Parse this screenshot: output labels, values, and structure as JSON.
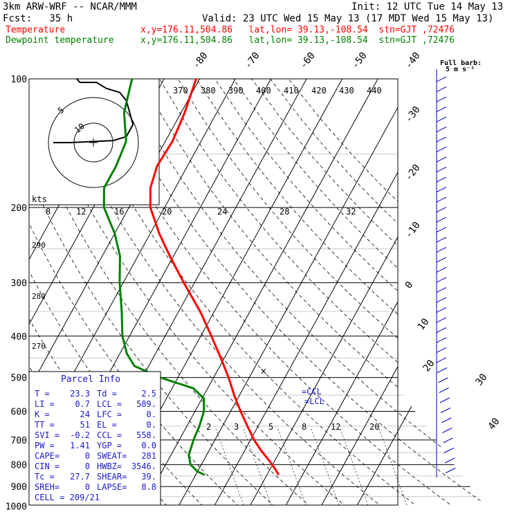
{
  "header": {
    "model": "3km ARW-WRF -- NCAR/MMM",
    "init": "Init: 12 UTC Tue 14 May 13",
    "fcst": "Fcst:   35 h",
    "valid": "Valid: 23 UTC Wed 15 May 13 (17 MDT Wed 15 May 13)",
    "temp_label": "Temperature",
    "dew_label": "Dewpoint temperature",
    "temp_loc": "x,y=176.11,504.86   lat,lon= 39.13,-108.54  stn=GJT ,72476",
    "dew_loc": "x,y=176.11,504.86   lat,lon= 39.13,-108.54  stn=GJT ,72476"
  },
  "wind_key": {
    "line1": "Full barb:",
    "line2": "5 m s⁻¹"
  },
  "hodograph_unit": "kts",
  "colors": {
    "temperature": "#ff0000",
    "dewpoint": "#008000",
    "axes": "#000000",
    "wind": "#0000c8",
    "info": "#1a1acc"
  },
  "parcel_info": {
    "title": "Parcel Info",
    "rows": [
      [
        "T   =",
        "23.3",
        "Td  =",
        "2.5"
      ],
      [
        "LI  =",
        "0.7",
        "LCL =",
        "589."
      ],
      [
        "K   =",
        "24",
        "LFC =",
        "0."
      ],
      [
        "TT  =",
        "51",
        "EL  =",
        "0."
      ],
      [
        "SVI =",
        "-0.2",
        "CCL =",
        "558."
      ],
      [
        "PW  =",
        "1.41",
        "YGP =",
        "0.0"
      ],
      [
        "CAPE=",
        "0",
        "SWEAT=",
        "281"
      ],
      [
        "CIN =",
        "0",
        "HWBZ=",
        "3546."
      ],
      [
        "Tc  =",
        "27.7",
        "SHEAR=",
        "39."
      ],
      [
        "SREH=",
        "0",
        "LAPSE=",
        "8.8"
      ]
    ],
    "cell": "CELL = 209/21"
  },
  "markers": {
    "ccl": "=CCL",
    "lcl": "=LCL"
  },
  "chart_data": {
    "type": "line",
    "title": "",
    "xlabel": "",
    "ylabel": "",
    "y_axis": "pressure (hPa), log scale",
    "pressure_ticks": [
      100,
      200,
      300,
      400,
      500,
      600,
      700,
      800,
      900,
      1000
    ],
    "isotherm_labels": [
      -80,
      -70,
      -60,
      -50,
      -40,
      -30,
      -20,
      -10,
      0,
      10,
      20,
      30,
      40
    ],
    "theta_labels": [
      370,
      380,
      390,
      400,
      410,
      420,
      430,
      440
    ],
    "mixing_ratio_labels": [
      2,
      3,
      5,
      8,
      12,
      20
    ],
    "hodograph_speed_labels": [
      8,
      12,
      16,
      20,
      24,
      28,
      32
    ],
    "hodograph_ring_labels": [
      5,
      10
    ],
    "series": [
      {
        "name": "Temperature",
        "pressure": [
          845,
          820,
          780,
          740,
          700,
          650,
          600,
          550,
          500,
          450,
          400,
          350,
          300,
          260,
          230,
          200,
          180,
          160,
          140,
          120,
          100
        ],
        "temp": [
          23.3,
          21.5,
          18.2,
          14.5,
          11.0,
          7.0,
          2.8,
          -1.5,
          -5.8,
          -11.0,
          -17.0,
          -24.0,
          -33.0,
          -41.0,
          -47.5,
          -54.0,
          -57.0,
          -58.5,
          -58.0,
          -59.0,
          -61.0
        ]
      },
      {
        "name": "Dewpoint temperature",
        "pressure": [
          845,
          830,
          800,
          760,
          700,
          650,
          600,
          560,
          530,
          500,
          470,
          440,
          400,
          350,
          300,
          260,
          230,
          200,
          180,
          160,
          140,
          120,
          100
        ],
        "temp": [
          2.5,
          0.0,
          -3.0,
          -5.0,
          -6.0,
          -6.5,
          -7.5,
          -9.5,
          -14.0,
          -25.0,
          -34.0,
          -38.0,
          -42.0,
          -46.0,
          -51.0,
          -55.0,
          -60.0,
          -67.0,
          -70.0,
          -70.0,
          -71.0,
          -76.0,
          -79.0
        ]
      }
    ],
    "hodograph_path": [
      [
        0,
        0
      ],
      [
        0,
        30
      ],
      [
        0,
        -30
      ],
      [
        0,
        0
      ]
    ],
    "hodograph_u_v_kts": [
      [
        -10,
        1
      ],
      [
        -5,
        1
      ],
      [
        8,
        2
      ],
      [
        12,
        4
      ],
      [
        14,
        10
      ],
      [
        13,
        16
      ],
      [
        12,
        22
      ],
      [
        10,
        26
      ],
      [
        6,
        28
      ],
      [
        3,
        31
      ],
      [
        -2,
        31
      ],
      [
        -3,
        33
      ]
    ],
    "grid": true
  }
}
